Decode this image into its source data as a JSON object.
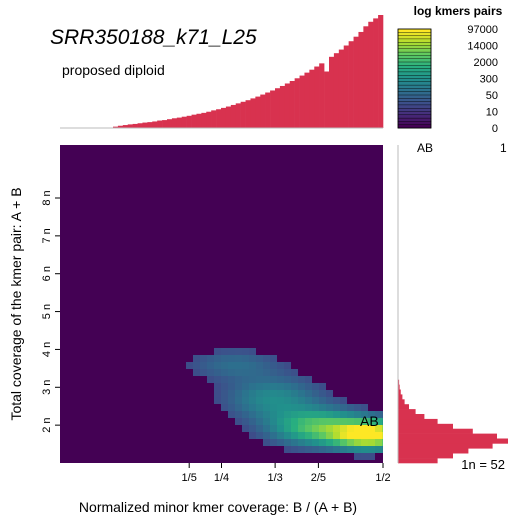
{
  "header": {
    "title": "SRR350188_k71_L25",
    "subtitle": "proposed diploid"
  },
  "chart_data": {
    "type": "heatmap",
    "xlabel": "Normalized minor kmer coverage: B / (A + B)",
    "ylabel": "Total coverage of the kmer pair: A + B",
    "x_ticks": [
      "1/5",
      "1/4",
      "1/3",
      "2/5",
      "1/2"
    ],
    "x_tick_values": [
      0.2,
      0.25,
      0.333,
      0.4,
      0.5
    ],
    "xlim": [
      0.0,
      0.5
    ],
    "y_ticks": [
      "2 n",
      "3 n",
      "4 n",
      "5 n",
      "6 n",
      "7 n",
      "8 n"
    ],
    "y_tick_values": [
      2,
      3,
      4,
      5,
      6,
      7,
      8
    ],
    "ylim": [
      1,
      9.4
    ],
    "legend": {
      "title": "log kmers pairs",
      "levels": [
        "97000",
        "14000",
        "2000",
        "300",
        "50",
        "10",
        "0"
      ]
    },
    "peak_label": "AB",
    "genotype_table": [
      {
        "label": "AB",
        "value": "1"
      }
    ],
    "coverage_note": "1n =  52",
    "colors": {
      "background": "#440154",
      "marginal_histogram": "#d8324f",
      "viridis": [
        "#440154",
        "#472d7b",
        "#3b528b",
        "#2c728e",
        "#21918c",
        "#28ae80",
        "#5ec962",
        "#addc30",
        "#fde725"
      ]
    },
    "marginal_x_relative": [
      0.012,
      0.02,
      0.026,
      0.032,
      0.036,
      0.042,
      0.048,
      0.052,
      0.058,
      0.066,
      0.07,
      0.078,
      0.086,
      0.092,
      0.1,
      0.108,
      0.118,
      0.126,
      0.134,
      0.144,
      0.156,
      0.166,
      0.178,
      0.19,
      0.204,
      0.218,
      0.232,
      0.246,
      0.262,
      0.278,
      0.296,
      0.314,
      0.332,
      0.352,
      0.372,
      0.394,
      0.416,
      0.44,
      0.464,
      0.49,
      0.516,
      0.544,
      0.572,
      0.5,
      0.63,
      0.662,
      0.694,
      0.73,
      0.768,
      0.808,
      0.85,
      0.9,
      0.94,
      0.97,
      1.0
    ],
    "marginal_y_relative": [
      0.36,
      0.5,
      0.64,
      0.86,
      1.0,
      0.9,
      0.68,
      0.5,
      0.36,
      0.24,
      0.16,
      0.1,
      0.06,
      0.04,
      0.025,
      0.015,
      0.01
    ],
    "marginal_y_range": [
      1.0,
      3.2
    ]
  }
}
